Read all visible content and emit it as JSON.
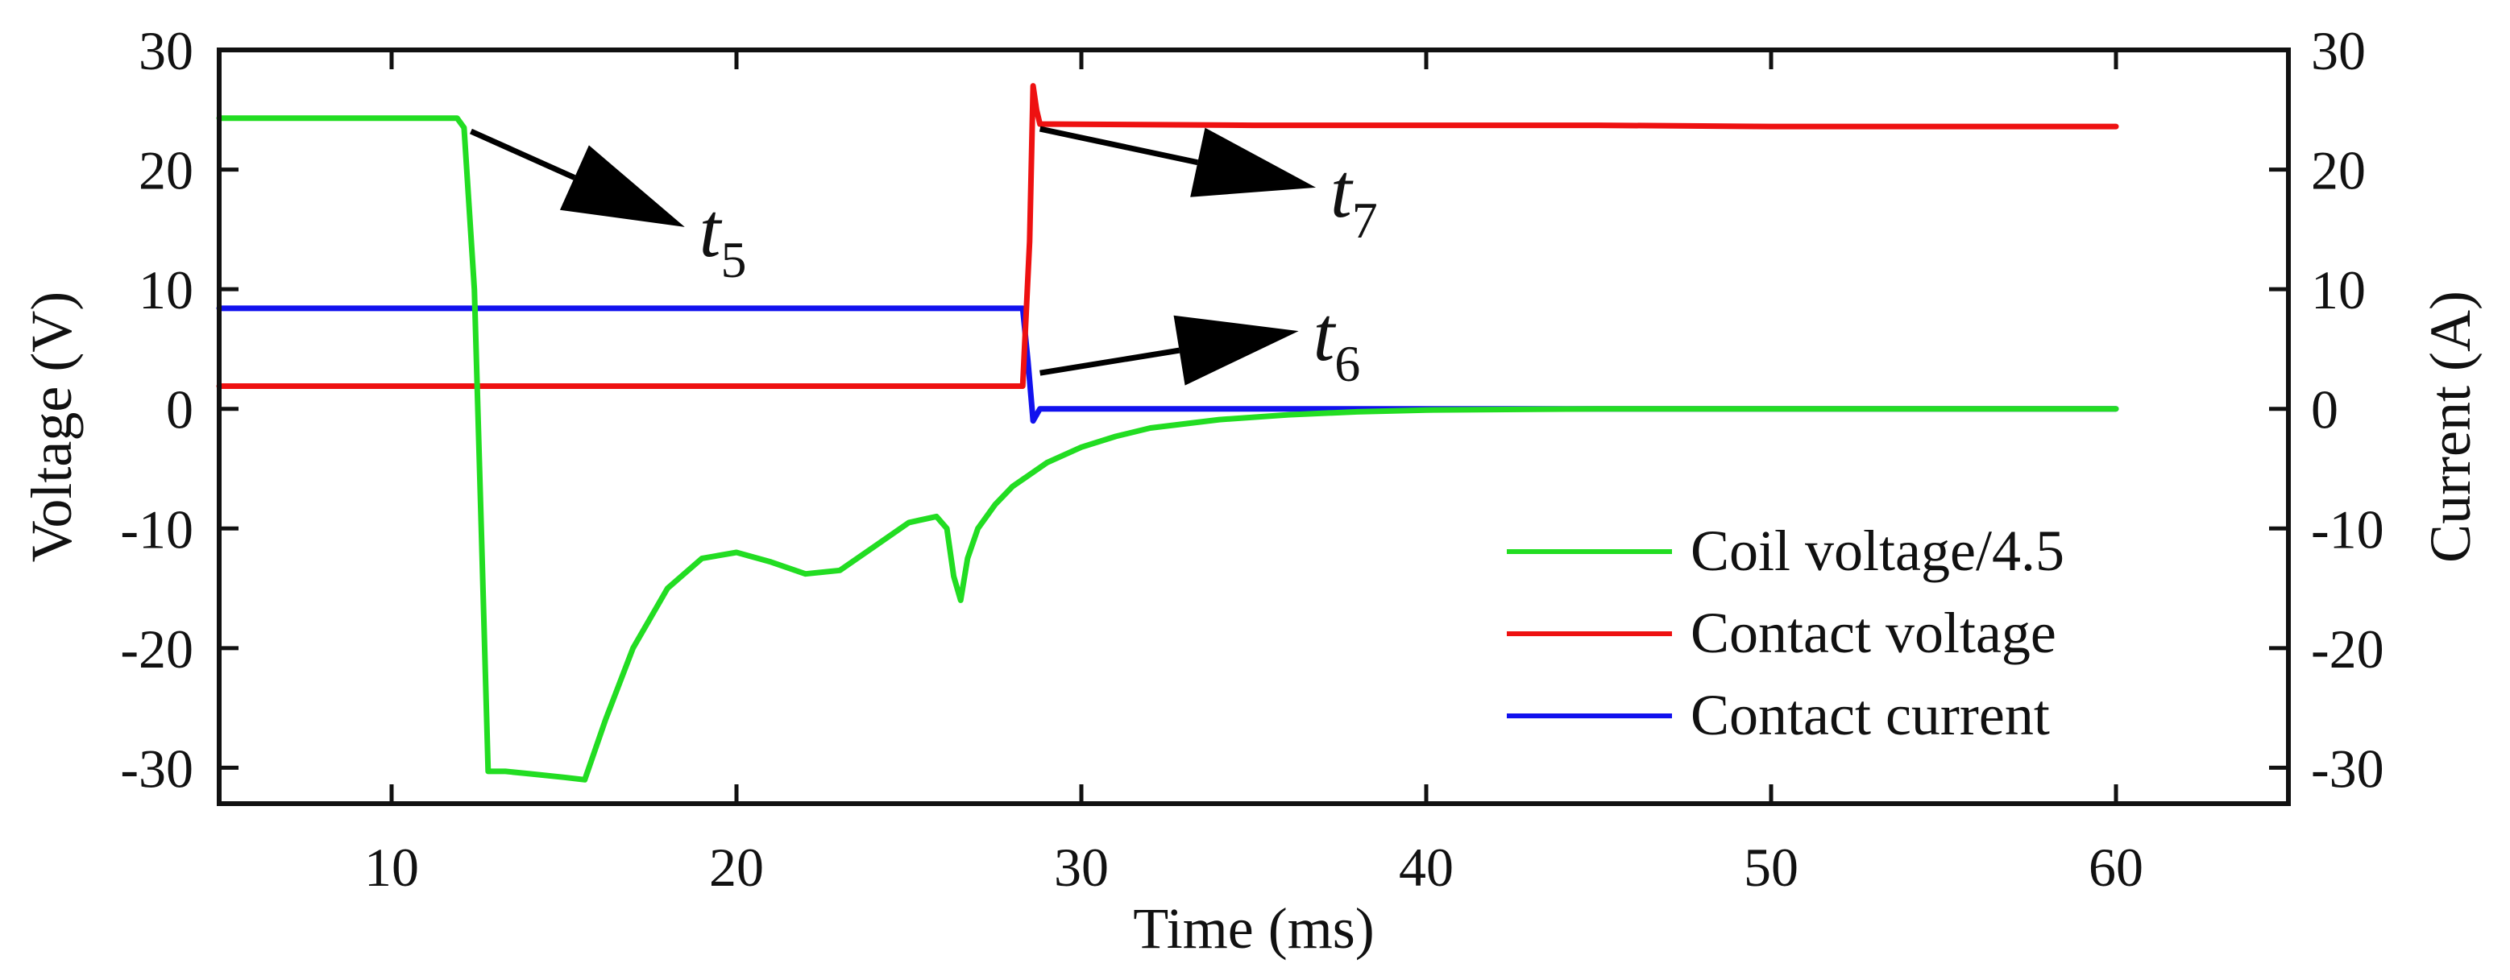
{
  "chart_data": {
    "type": "line",
    "title": "",
    "xlabel": "Time (ms)",
    "ylabel": "Voltage (V)",
    "y2label": "Current (A)",
    "xlim": [
      5,
      65
    ],
    "ylim": [
      -33,
      30
    ],
    "y2lim": [
      -33,
      30
    ],
    "xticks": [
      10,
      20,
      30,
      40,
      50,
      60
    ],
    "yticks": [
      30,
      20,
      10,
      0,
      -10,
      -20,
      -30
    ],
    "y2ticks": [
      30,
      20,
      10,
      0,
      -10,
      -20,
      -30
    ],
    "series": [
      {
        "name": "Coil voltage/4.5",
        "color": "#22dd22",
        "x": [
          5,
          8,
          11,
          11.9,
          12.1,
          12.4,
          12.6,
          12.8,
          13.3,
          14,
          15,
          15.6,
          16.2,
          17,
          18,
          19,
          20,
          21,
          22,
          23,
          24,
          25,
          25.8,
          26.1,
          26.3,
          26.5,
          26.7,
          27,
          27.5,
          28,
          29,
          30,
          31,
          32,
          34,
          36,
          38,
          40,
          45,
          50,
          55,
          60
        ],
        "y": [
          24.3,
          24.3,
          24.3,
          24.3,
          23.5,
          10,
          -10,
          -30.3,
          -30.3,
          -30.5,
          -30.8,
          -31,
          -26,
          -20,
          -15,
          -12.5,
          -12,
          -12.8,
          -13.8,
          -13.5,
          -11.5,
          -9.5,
          -9,
          -10,
          -14,
          -16,
          -12.5,
          -10,
          -8,
          -6.5,
          -4.5,
          -3.2,
          -2.3,
          -1.6,
          -0.9,
          -0.5,
          -0.25,
          -0.1,
          0,
          0,
          0,
          0
        ]
      },
      {
        "name": "Contact voltage",
        "color": "#ee1111",
        "x": [
          5,
          10,
          15,
          20,
          25,
          28.3,
          28.5,
          28.6,
          28.7,
          28.8,
          29.2,
          35,
          40,
          45,
          50,
          55,
          60
        ],
        "y": [
          1.9,
          1.9,
          1.9,
          1.9,
          1.9,
          1.9,
          14,
          27,
          25,
          23.8,
          23.8,
          23.7,
          23.7,
          23.7,
          23.6,
          23.6,
          23.6
        ]
      },
      {
        "name": "Contact current",
        "color": "#1111ee",
        "x": [
          5,
          10,
          15,
          20,
          25,
          28.3,
          28.45,
          28.6,
          28.8,
          29.2,
          35,
          40,
          45,
          50,
          55,
          60
        ],
        "y": [
          8.4,
          8.4,
          8.4,
          8.4,
          8.4,
          8.4,
          4,
          -1,
          0,
          0,
          0,
          0,
          0,
          0,
          0,
          0
        ]
      }
    ],
    "annotations": [
      {
        "base": "t",
        "sub": "5",
        "from_x": 12.3,
        "from_y": 23.2,
        "to_x": 18.5,
        "to_y": 15.2
      },
      {
        "base": "t",
        "sub": "7",
        "from_x": 28.8,
        "from_y": 23.4,
        "to_x": 36.8,
        "to_y": 18.5
      },
      {
        "base": "t",
        "sub": "6",
        "from_x": 28.8,
        "from_y": 3.0,
        "to_x": 36.3,
        "to_y": 6.5
      }
    ],
    "legend": {
      "position": "bottom-right",
      "labels": [
        "Coil voltage/4.5",
        "Contact voltage",
        "Contact current"
      ]
    }
  }
}
